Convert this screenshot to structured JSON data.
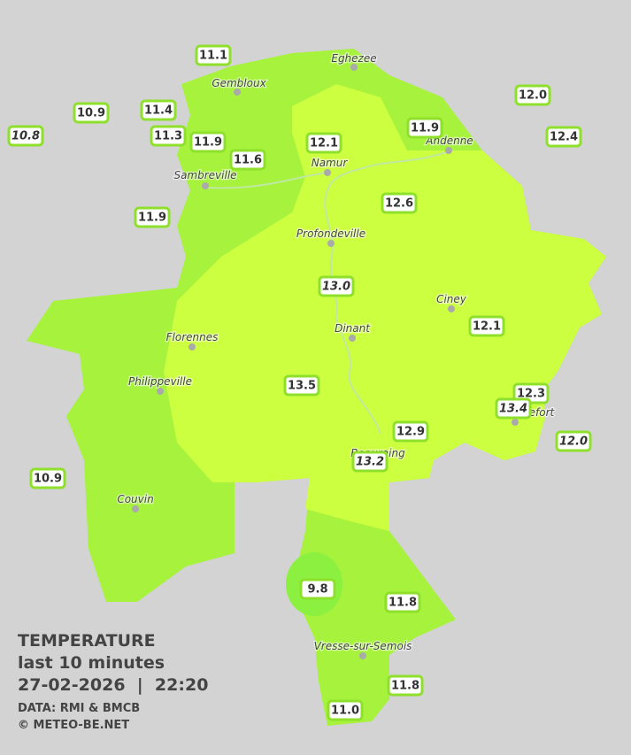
{
  "towns": [
    {
      "name": "Eghezee"
    },
    {
      "name": "Gembloux"
    },
    {
      "name": "Andenne"
    },
    {
      "name": "Namur"
    },
    {
      "name": "Sambreville"
    },
    {
      "name": "Profondeville"
    },
    {
      "name": "Ciney"
    },
    {
      "name": "Dinant"
    },
    {
      "name": "Florennes"
    },
    {
      "name": "Philippeville"
    },
    {
      "name": "Rochefort"
    },
    {
      "name": "Beauraing"
    },
    {
      "name": "Couvin"
    },
    {
      "name": "Vresse-sur-Semois"
    }
  ],
  "stations": [
    {
      "value": "11.1"
    },
    {
      "value": "10.9"
    },
    {
      "value": "11.4"
    },
    {
      "value": "10.8"
    },
    {
      "value": "11.3"
    },
    {
      "value": "11.9"
    },
    {
      "value": "11.6"
    },
    {
      "value": "12.1"
    },
    {
      "value": "11.9"
    },
    {
      "value": "12.0"
    },
    {
      "value": "12.4"
    },
    {
      "value": "11.9"
    },
    {
      "value": "12.6"
    },
    {
      "value": "13.0"
    },
    {
      "value": "12.1"
    },
    {
      "value": "13.5"
    },
    {
      "value": "12.3"
    },
    {
      "value": "13.4"
    },
    {
      "value": "12.9"
    },
    {
      "value": "12.0"
    },
    {
      "value": "13.2"
    },
    {
      "value": "10.9"
    },
    {
      "value": "9.8"
    },
    {
      "value": "11.8"
    },
    {
      "value": "11.8"
    },
    {
      "value": "11.0"
    }
  ],
  "legend": {
    "title": "TEMPERATURE",
    "subtitle": "last 10 minutes",
    "datetime": "27-02-2026  |  22:20",
    "source": "DATA: RMI & BMCB",
    "copyright": "© METEO-BE.NET"
  }
}
